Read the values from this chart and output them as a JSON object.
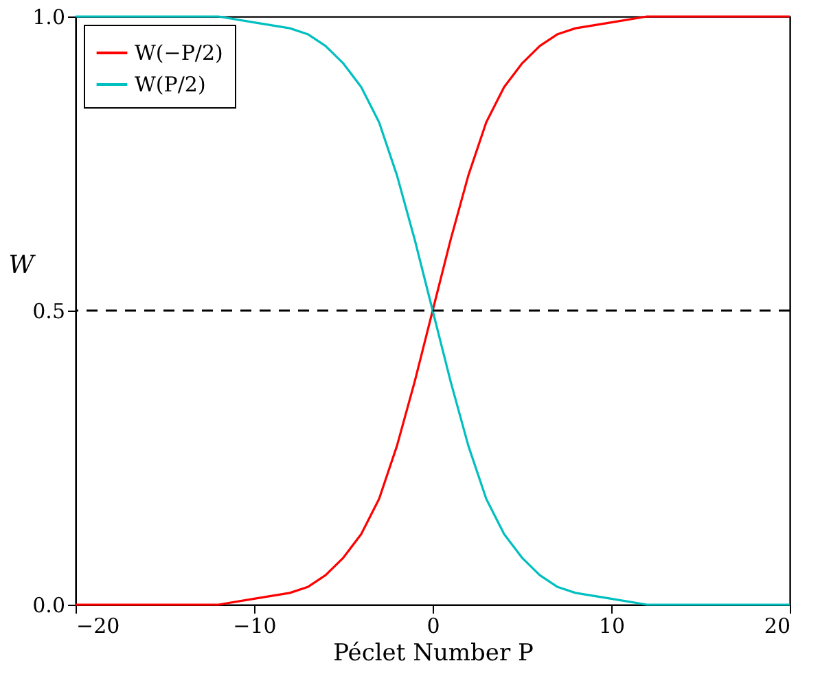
{
  "chart_data": {
    "type": "line",
    "xlabel": "Péclet Number P",
    "ylabel": "W",
    "x": [
      -20,
      -16,
      -14,
      -12,
      -10,
      -8,
      -7,
      -6,
      -5,
      -4,
      -3,
      -2,
      -1,
      0,
      1,
      2,
      3,
      4,
      5,
      6,
      7,
      8,
      10,
      12,
      14,
      16,
      20
    ],
    "series": [
      {
        "name": "W(−P/2)",
        "color": "#ff0000",
        "values": [
          0,
          0,
          0,
          0,
          0.01,
          0.02,
          0.03,
          0.05,
          0.08,
          0.12,
          0.18,
          0.27,
          0.38,
          0.5,
          0.62,
          0.73,
          0.82,
          0.88,
          0.92,
          0.95,
          0.97,
          0.98,
          0.99,
          1,
          1,
          1,
          1
        ]
      },
      {
        "name": "W(P/2)",
        "color": "#00bfbf",
        "values": [
          1,
          1,
          1,
          1,
          0.99,
          0.98,
          0.97,
          0.95,
          0.92,
          0.88,
          0.82,
          0.73,
          0.62,
          0.5,
          0.38,
          0.27,
          0.18,
          0.12,
          0.08,
          0.05,
          0.03,
          0.02,
          0.01,
          0,
          0,
          0,
          0
        ]
      }
    ],
    "xlim": [
      -20,
      20
    ],
    "xticks": [
      -20,
      -10,
      0,
      10,
      20
    ],
    "ylim": [
      0,
      1
    ],
    "yticks": [
      {
        "value": 0,
        "label": "0.0"
      },
      {
        "value": 0.5,
        "label": "0.5"
      },
      {
        "value": 1,
        "label": "1.0"
      }
    ],
    "ref_lines": [
      {
        "axis": "y",
        "value": 0.5,
        "line_style": "dashed",
        "color": "#000000"
      }
    ],
    "legend": "top left",
    "grid": false,
    "marker": "none",
    "line_style": "solid"
  }
}
